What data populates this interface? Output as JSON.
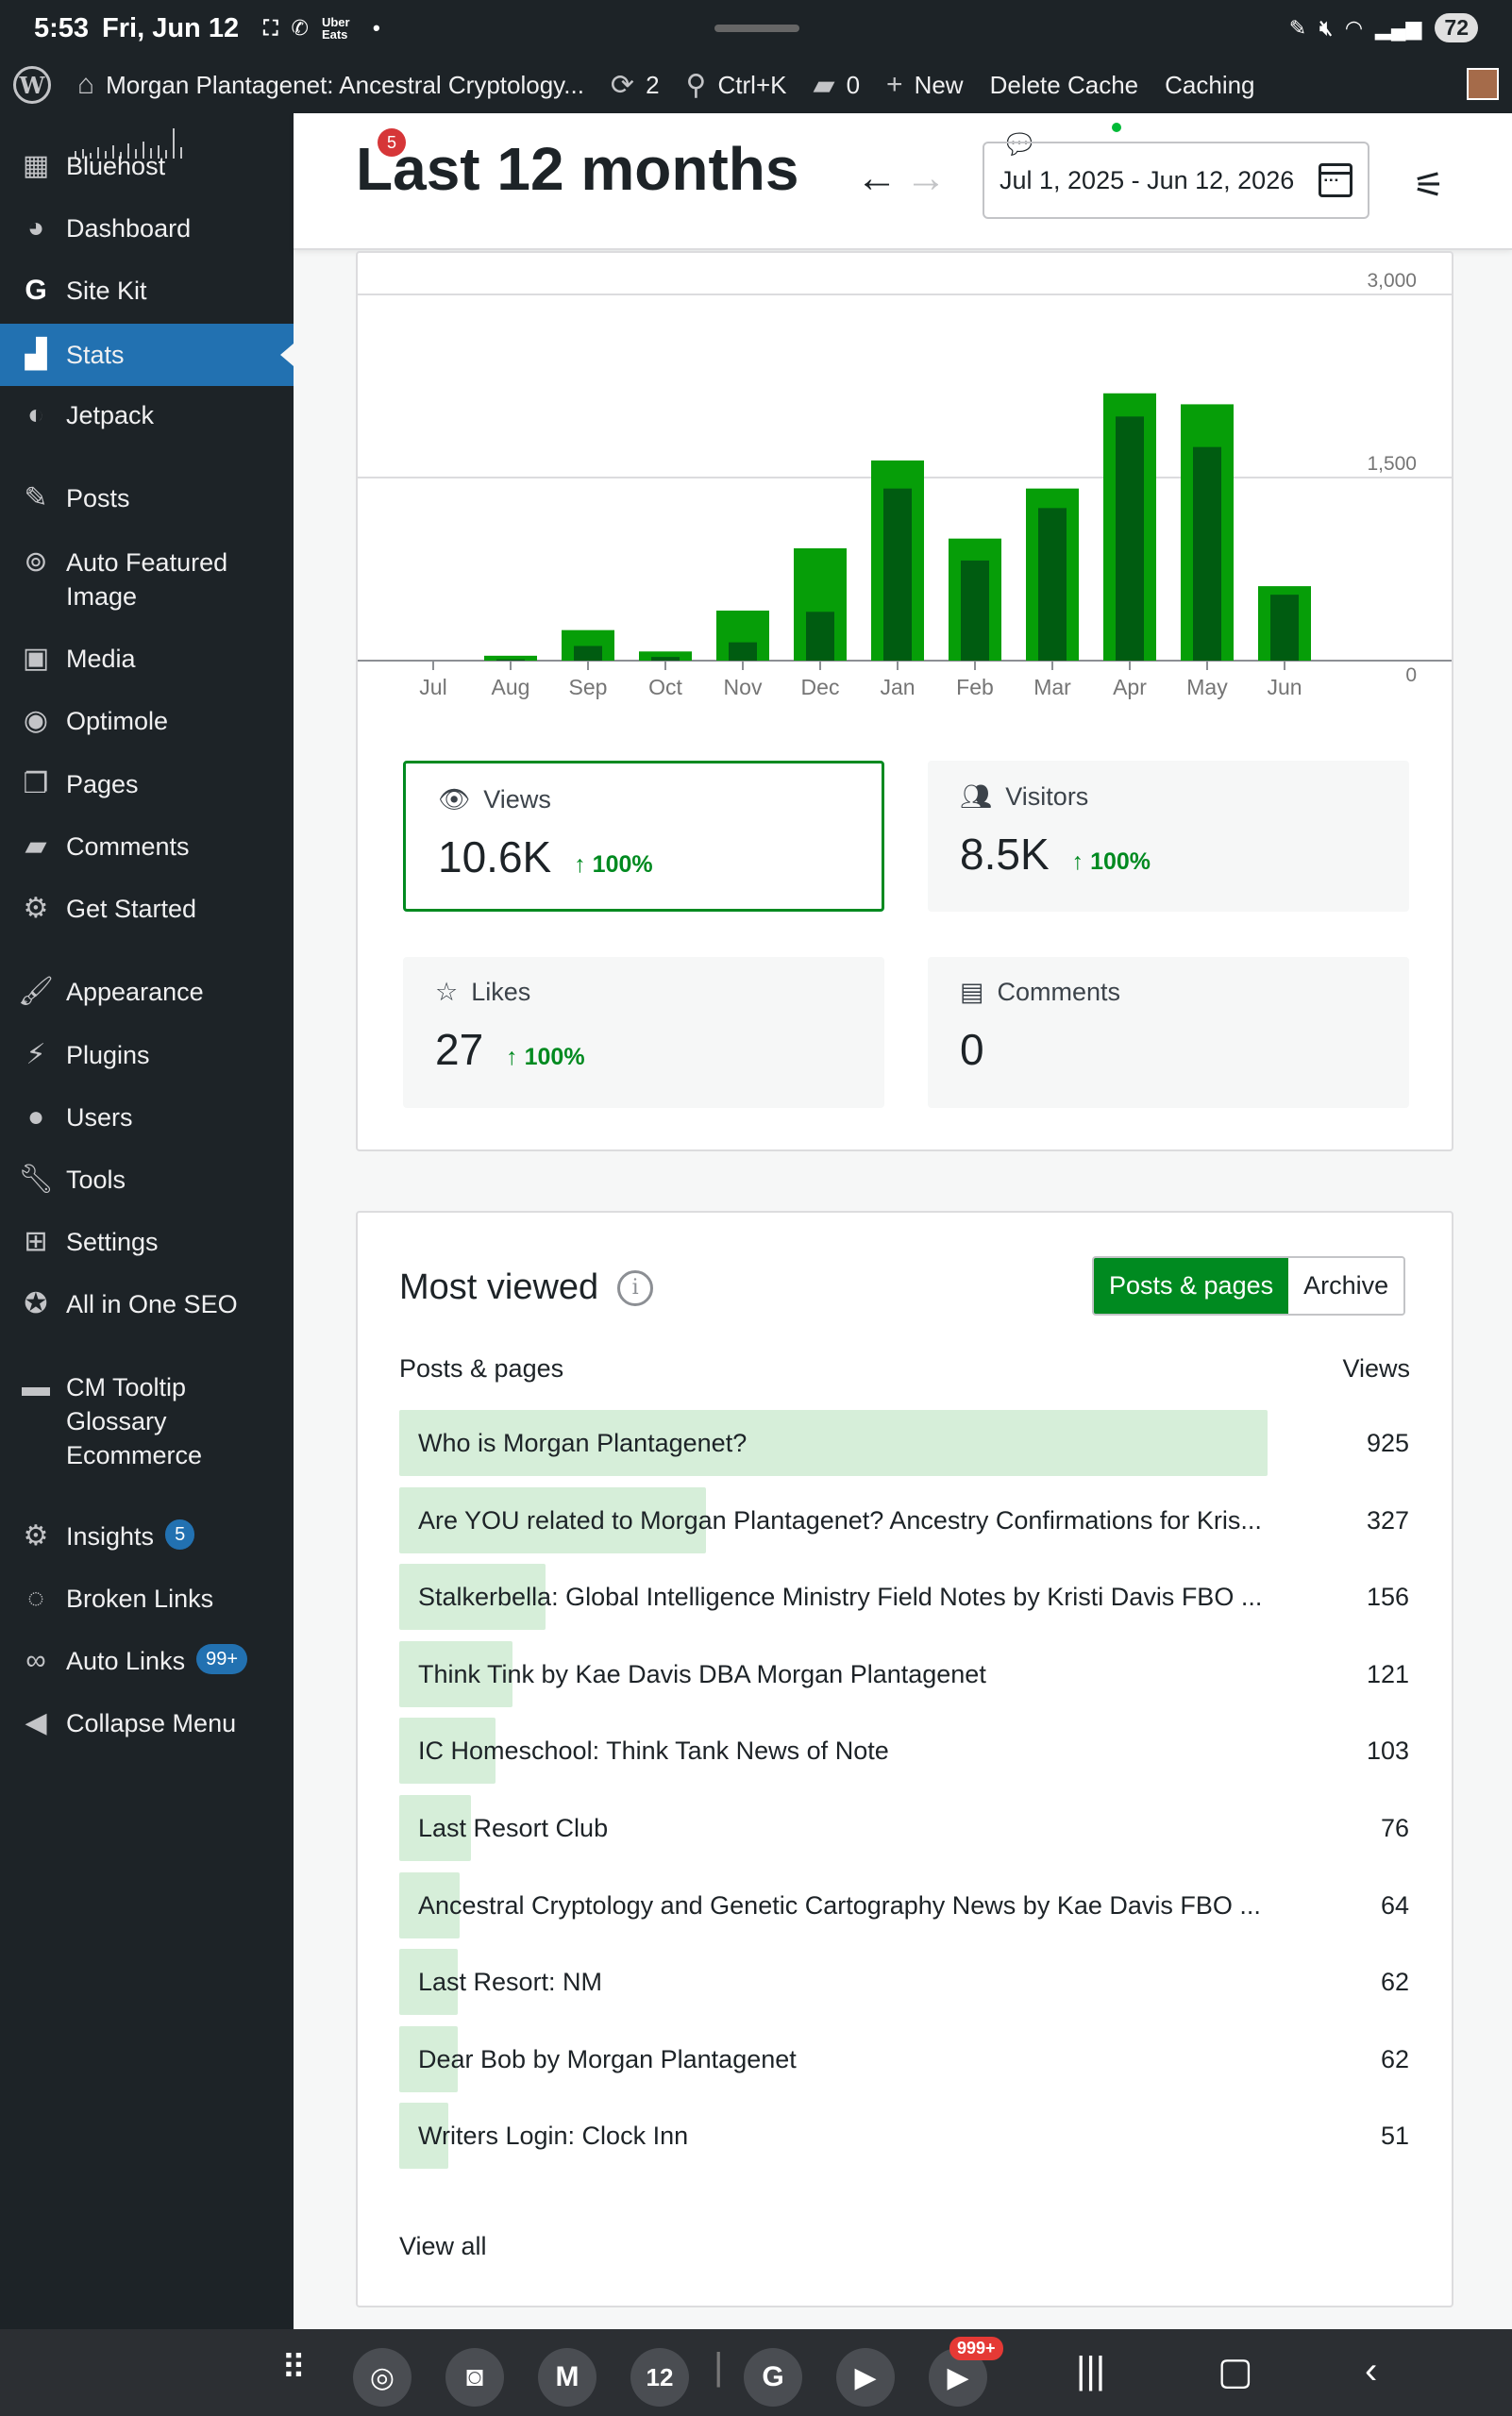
{
  "status_bar": {
    "time": "5:53",
    "date": "Fri, Jun 12",
    "app_badge": "Uber Eats",
    "battery": "72"
  },
  "admin_bar": {
    "site_title": "Morgan Plantagenet: Ancestral Cryptology...",
    "updates_count": "2",
    "search_shortcut": "Ctrl+K",
    "comments_count": "0",
    "new_label": "New",
    "delete_cache": "Delete Cache",
    "caching": "Caching"
  },
  "sidebar": {
    "items": [
      {
        "label": "Bluehost",
        "icon": "grid-icon"
      },
      {
        "label": "Dashboard",
        "icon": "dashboard-icon"
      },
      {
        "label": "Site Kit",
        "icon": "google-icon"
      },
      {
        "label": "Stats",
        "icon": "stats-icon"
      },
      {
        "label": "Jetpack",
        "icon": "jetpack-icon"
      },
      {
        "label": "Posts",
        "icon": "pin-icon"
      },
      {
        "label": "Auto Featured Image",
        "icon": "image-search-icon"
      },
      {
        "label": "Media",
        "icon": "media-icon"
      },
      {
        "label": "Optimole",
        "icon": "optimole-icon"
      },
      {
        "label": "Pages",
        "icon": "pages-icon"
      },
      {
        "label": "Comments",
        "icon": "comment-icon"
      },
      {
        "label": "Get Started",
        "icon": "gear-icon"
      },
      {
        "label": "Appearance",
        "icon": "brush-icon"
      },
      {
        "label": "Plugins",
        "icon": "plug-icon"
      },
      {
        "label": "Users",
        "icon": "user-icon"
      },
      {
        "label": "Tools",
        "icon": "wrench-icon"
      },
      {
        "label": "Settings",
        "icon": "settings-icon"
      },
      {
        "label": "All in One SEO",
        "icon": "seo-icon"
      },
      {
        "label": "CM Tooltip Glossary Ecommerce",
        "icon": "tooltip-icon"
      },
      {
        "label": "Insights",
        "icon": "insights-icon",
        "badge": "5"
      },
      {
        "label": "Broken Links",
        "icon": "broken-link-icon"
      },
      {
        "label": "Auto Links",
        "icon": "link-icon",
        "badge": "99+"
      },
      {
        "label": "Collapse Menu",
        "icon": "collapse-icon"
      }
    ]
  },
  "header": {
    "notification_badge": "5",
    "title": "Last 12 months",
    "date_range": "Jul 1, 2025 - Jun 12, 2026"
  },
  "chart_data": {
    "type": "bar",
    "categories": [
      "Jul",
      "Aug",
      "Sep",
      "Oct",
      "Nov",
      "Dec",
      "Jan",
      "Feb",
      "Mar",
      "Apr",
      "May",
      "Jun"
    ],
    "series": [
      {
        "values": [
          0,
          40,
          250,
          75,
          410,
          920,
          1640,
          1000,
          1410,
          2190,
          2100,
          610
        ]
      },
      {
        "values": [
          0,
          10,
          120,
          30,
          150,
          400,
          1410,
          820,
          1250,
          2000,
          1750,
          540
        ]
      }
    ],
    "ytick_labels": [
      "0",
      "1,500",
      "3,000"
    ],
    "ylim": [
      0,
      3000
    ],
    "grid": true,
    "colors": {
      "outer": "#069e08",
      "inner": "#005c11"
    }
  },
  "stats_tiles": [
    {
      "label": "Views",
      "value": "10.6K",
      "change": "100%",
      "icon": "eye-icon"
    },
    {
      "label": "Visitors",
      "value": "8.5K",
      "change": "100%",
      "icon": "people-icon"
    },
    {
      "label": "Likes",
      "value": "27",
      "change": "100%",
      "icon": "star-icon"
    },
    {
      "label": "Comments",
      "value": "0",
      "change": "",
      "icon": "comment-box-icon"
    }
  ],
  "most_viewed": {
    "title": "Most viewed",
    "tab_active": "Posts & pages",
    "tab_inactive": "Archive",
    "col_left": "Posts & pages",
    "col_right": "Views",
    "rows": [
      {
        "title": "Who is Morgan Plantagenet?",
        "views": "925",
        "count": 925
      },
      {
        "title": "Are YOU related to Morgan Plantagenet? Ancestry Confirmations for Kris...",
        "views": "327",
        "count": 327
      },
      {
        "title": "Stalkerbella: Global Intelligence Ministry Field Notes by Kristi Davis FBO ...",
        "views": "156",
        "count": 156
      },
      {
        "title": "Think Tink by Kae Davis DBA Morgan Plantagenet",
        "views": "121",
        "count": 121
      },
      {
        "title": "IC Homeschool: Think Tank News of Note",
        "views": "103",
        "count": 103
      },
      {
        "title": "Last Resort Club",
        "views": "76",
        "count": 76
      },
      {
        "title": "Ancestral Cryptology and Genetic Cartography News by Kae Davis FBO ...",
        "views": "64",
        "count": 64
      },
      {
        "title": "Last Resort: NM",
        "views": "62",
        "count": 62
      },
      {
        "title": "Dear Bob by Morgan Plantagenet",
        "views": "62",
        "count": 62
      },
      {
        "title": "Writers Login: Clock Inn",
        "views": "51",
        "count": 51
      }
    ],
    "view_all": "View all"
  },
  "nav_bar": {
    "calendar_day": "12",
    "youtube_badge": "999+"
  }
}
